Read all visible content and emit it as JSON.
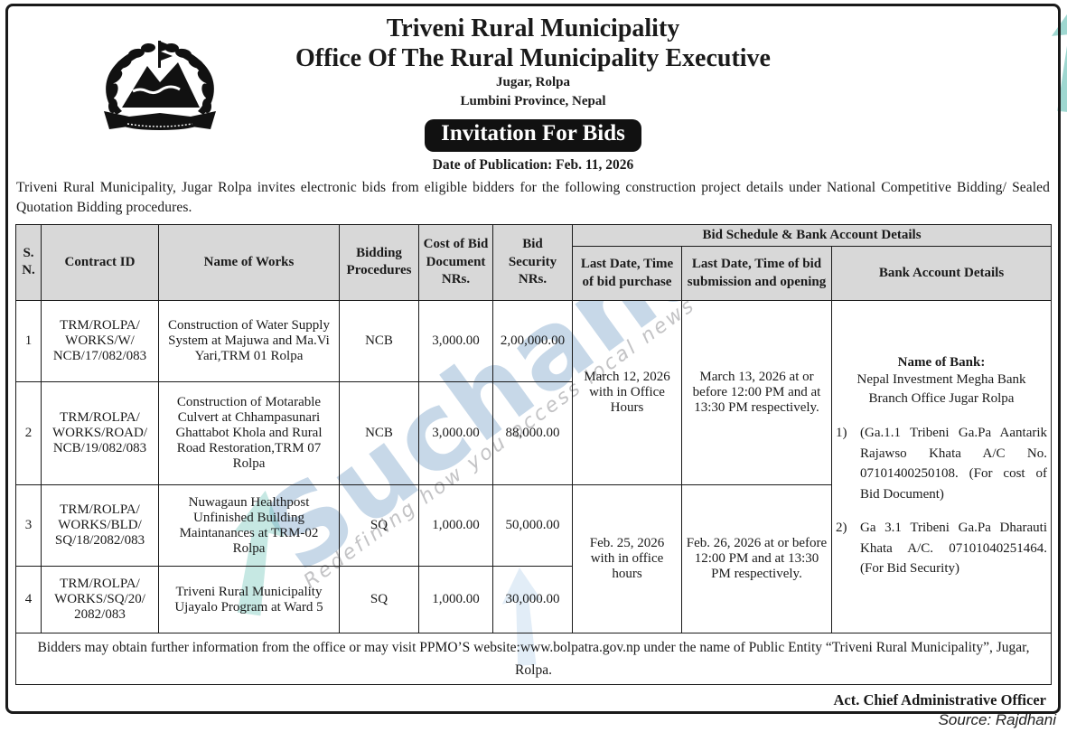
{
  "header": {
    "municipality": "Triveni Rural Municipality",
    "office": "Office Of The Rural Municipality Executive",
    "address_line1": "Jugar, Rolpa",
    "address_line2": "Lumbini Province, Nepal",
    "banner": "Invitation For Bids",
    "publication_date": "Date of Publication: Feb. 11, 2026",
    "logo": "nepal-government-emblem"
  },
  "intro": "Triveni Rural Municipality, Jugar Rolpa invites electronic bids from eligible bidders for the following construction project details under National Competitive Bidding/ Sealed Quotation Bidding procedures.",
  "table": {
    "group_header": "Bid Schedule & Bank Account Details",
    "columns": [
      "S. N.",
      "Contract ID",
      "Name of Works",
      "Bidding Procedures",
      "Cost of Bid Document NRs.",
      "Bid Security NRs.",
      "Last Date, Time of bid purchase",
      "Last Date, Time of bid submission and opening",
      "Bank Account Details"
    ],
    "rows": [
      {
        "sn": "1",
        "contract_id": "TRM/ROLPA/ WORKS/W/ NCB/17/082/083",
        "name_of_works": "Construction of Water Supply System at Majuwa and Ma.Vi Yari,TRM 01 Rolpa",
        "bidding_procedure": "NCB",
        "cost_of_bid_document": "3,000.00",
        "bid_security": "2,00,000.00"
      },
      {
        "sn": "2",
        "contract_id": "TRM/ROLPA/ WORKS/ROAD/ NCB/19/082/083",
        "name_of_works": "Construction of Motarable Culvert at Chhampasunari Ghattabot Khola and Rural Road Restoration,TRM 07 Rolpa",
        "bidding_procedure": "NCB",
        "cost_of_bid_document": "3,000.00",
        "bid_security": "88,000.00"
      },
      {
        "sn": "3",
        "contract_id": "TRM/ROLPA/ WORKS/BLD/ SQ/18/2082/083",
        "name_of_works": "Nuwagaun Healthpost Unfinished Building Maintanances at TRM-02 Rolpa",
        "bidding_procedure": "SQ",
        "cost_of_bid_document": "1,000.00",
        "bid_security": "50,000.00"
      },
      {
        "sn": "4",
        "contract_id": "TRM/ROLPA/ WORKS/SQ/20/ 2082/083",
        "name_of_works": "Triveni Rural Municipality Ujayalo Program at Ward 5",
        "bidding_procedure": "SQ",
        "cost_of_bid_document": "1,000.00",
        "bid_security": "30,000.00"
      }
    ],
    "schedule_groups": [
      {
        "purchase": "March 12, 2026 with in Office Hours",
        "submission": "March 13, 2026 at or before 12:00 PM and at 13:30 PM respectively."
      },
      {
        "purchase": "Feb. 25, 2026 with in office hours",
        "submission": "Feb. 26, 2026 at or before 12:00 PM and at 13:30 PM respectively."
      }
    ],
    "bank_details": {
      "title": "Name of Bank:",
      "bank_name": "Nepal Investment Megha Bank Branch Office Jugar Rolpa",
      "accounts": [
        "(Ga.1.1 Tribeni Ga.Pa Aantarik Rajawso Khata A/C No. 07101400250108. (For cost of Bid Document)",
        "Ga 3.1 Tribeni Ga.Pa Dharauti Khata A/C. 07101040251464. (For Bid Security)"
      ]
    },
    "footer_note": "Bidders may obtain further information from the office or may visit PPMO’S website:www.bolpatra.gov.np under the name of Public Entity “Triveni Rural Municipality”, Jugar, Rolpa.",
    "signature": "Act. Chief Administrative Officer"
  },
  "watermark": {
    "brand": "Suchana",
    "tagline": "Redefining how you access local news",
    "brand_color": "#7aa2c9",
    "arrow_color": "#5fbfb2"
  },
  "source_label": "Source: Rajdhani"
}
